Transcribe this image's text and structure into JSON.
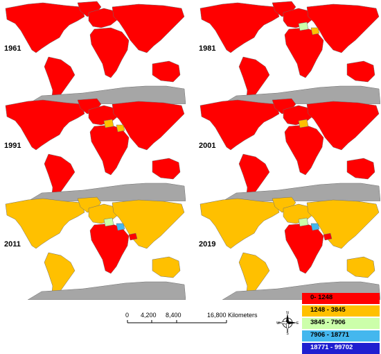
{
  "panels": [
    {
      "year": "1961",
      "north_america": "#ff0000",
      "south_america": "#ff0000",
      "europe": "#ff0000",
      "africa": "#ff0000",
      "asia": "#ff0000",
      "australia": "#ff0000",
      "greenland": "#ff0000",
      "highlights": []
    },
    {
      "year": "1981",
      "north_america": "#ff0000",
      "south_america": "#ff0000",
      "europe": "#ff0000",
      "africa": "#ff0000",
      "asia": "#ff0000",
      "australia": "#ff0000",
      "greenland": "#ff0000",
      "highlights": [
        "#ccffaa",
        "#ffc000"
      ]
    },
    {
      "year": "1991",
      "north_america": "#ff0000",
      "south_america": "#ff0000",
      "europe": "#ff0000",
      "africa": "#ff0000",
      "asia": "#ff0000",
      "australia": "#ff0000",
      "greenland": "#ff0000",
      "highlights": [
        "#ffc000",
        "#ffc000"
      ]
    },
    {
      "year": "2001",
      "north_america": "#ff0000",
      "south_america": "#ff0000",
      "europe": "#ff0000",
      "africa": "#ff0000",
      "asia": "#ff0000",
      "australia": "#ff0000",
      "greenland": "#ff0000",
      "highlights": [
        "#ffc000"
      ]
    },
    {
      "year": "2011",
      "north_america": "#ffc000",
      "south_america": "#ffc000",
      "europe": "#ffc000",
      "africa": "#ff0000",
      "asia": "#ffc000",
      "australia": "#ffc000",
      "greenland": "#ffc000",
      "highlights": [
        "#ccffaa",
        "#44b7ee",
        "#ff0000"
      ]
    },
    {
      "year": "2019",
      "north_america": "#ffc000",
      "south_america": "#ffc000",
      "europe": "#ffc000",
      "africa": "#ff0000",
      "asia": "#ffc000",
      "australia": "#ffc000",
      "greenland": "#ffc000",
      "highlights": [
        "#ccffaa",
        "#44b7ee",
        "#ff0000"
      ]
    }
  ],
  "scale": {
    "labels": [
      "0",
      "4,200",
      "8,400",
      "16,800 Kilometers"
    ]
  },
  "compass": {
    "n": "N",
    "s": "S",
    "e": "E",
    "w": "W"
  },
  "legend": [
    {
      "label": "0- 1248",
      "color": "#ff0000"
    },
    {
      "label": "1248 - 3845",
      "color": "#ffc000"
    },
    {
      "label": "3845 - 7906",
      "color": "#ccffaa"
    },
    {
      "label": "7906 - 18771",
      "color": "#44b7ee"
    },
    {
      "label": "18771 - 99702",
      "color": "#1f1fd0"
    }
  ],
  "colors": {
    "antarctica": "#a6a6a6",
    "border": "#6e6e6e",
    "sea": "#ffffff"
  }
}
